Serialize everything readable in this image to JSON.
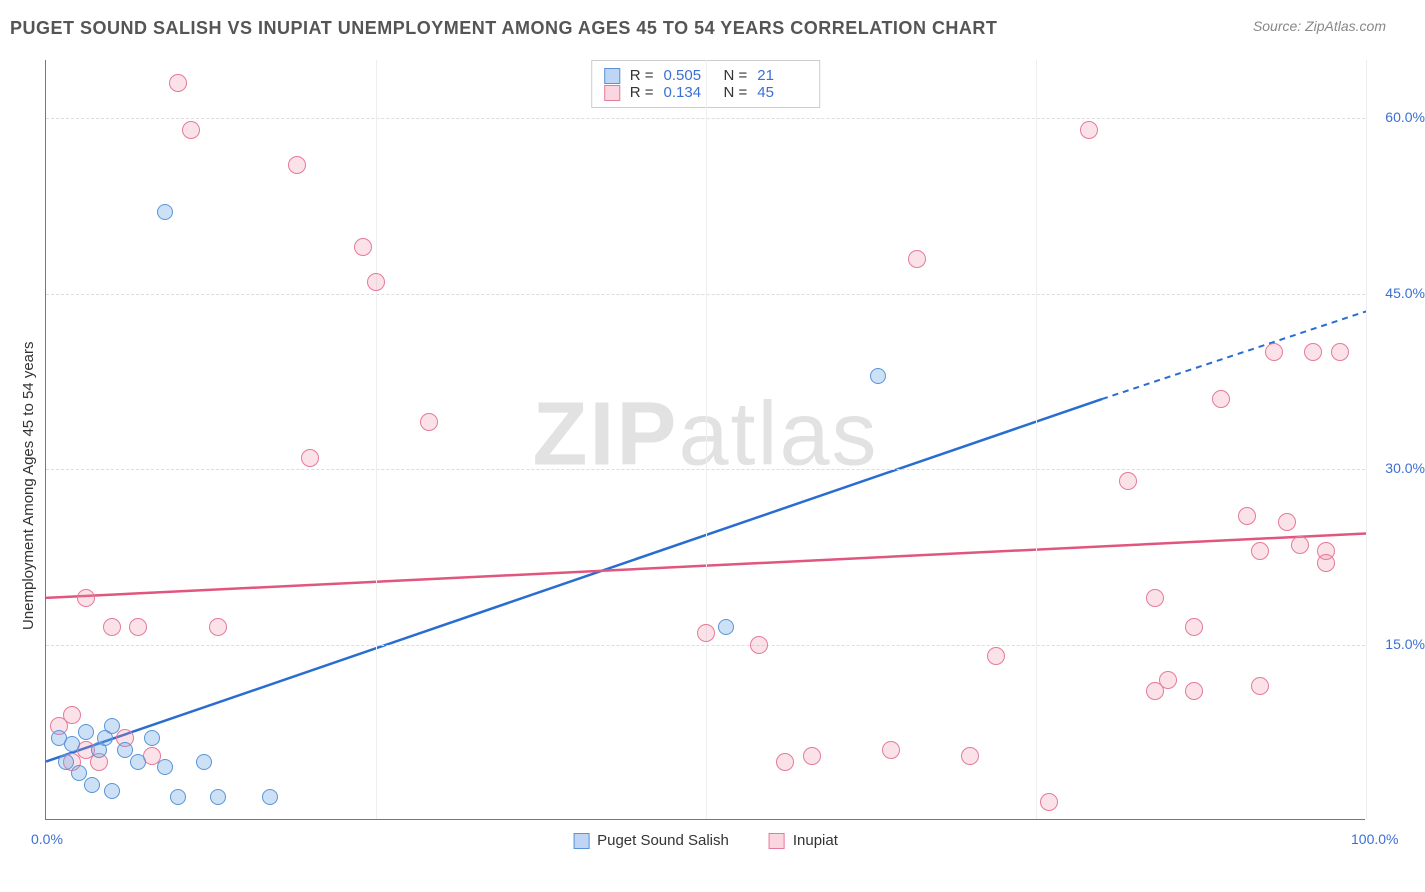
{
  "title": "PUGET SOUND SALISH VS INUPIAT UNEMPLOYMENT AMONG AGES 45 TO 54 YEARS CORRELATION CHART",
  "source": "Source: ZipAtlas.com",
  "ylabel": "Unemployment Among Ages 45 to 54 years",
  "watermark_a": "ZIP",
  "watermark_b": "atlas",
  "chart": {
    "type": "scatter",
    "xlim": [
      0,
      100
    ],
    "ylim": [
      0,
      65
    ],
    "xticks": [
      {
        "v": 0,
        "l": "0.0%"
      },
      {
        "v": 100,
        "l": "100.0%"
      }
    ],
    "yticks": [
      {
        "v": 15,
        "l": "15.0%"
      },
      {
        "v": 30,
        "l": "30.0%"
      },
      {
        "v": 45,
        "l": "45.0%"
      },
      {
        "v": 60,
        "l": "60.0%"
      }
    ],
    "vgrids": [
      25,
      50,
      75,
      100
    ],
    "background_color": "#ffffff",
    "grid_color": "#dddddd",
    "colors": {
      "blue_fill": "rgba(110,165,230,0.35)",
      "blue_stroke": "#5a94d8",
      "pink_fill": "rgba(240,140,165,0.25)",
      "pink_stroke": "#e57a9a",
      "trend_blue": "#2a6dd0",
      "trend_pink": "#e0567e",
      "tick_text": "#3b6fd4"
    },
    "series": [
      {
        "name": "Puget Sound Salish",
        "key": "blue",
        "R": "0.505",
        "N": "21",
        "trend": {
          "x1": 0,
          "y1": 5,
          "x2": 80,
          "y2": 36,
          "dash_x2": 100,
          "dash_y2": 43.5
        },
        "points": [
          {
            "x": 1,
            "y": 7
          },
          {
            "x": 1.5,
            "y": 5
          },
          {
            "x": 2,
            "y": 6.5
          },
          {
            "x": 2.5,
            "y": 4
          },
          {
            "x": 3,
            "y": 7.5
          },
          {
            "x": 3.5,
            "y": 3
          },
          {
            "x": 4,
            "y": 6
          },
          {
            "x": 4.5,
            "y": 7
          },
          {
            "x": 5,
            "y": 2.5
          },
          {
            "x": 5,
            "y": 8
          },
          {
            "x": 6,
            "y": 6
          },
          {
            "x": 7,
            "y": 5
          },
          {
            "x": 8,
            "y": 7
          },
          {
            "x": 9,
            "y": 4.5
          },
          {
            "x": 10,
            "y": 2
          },
          {
            "x": 12,
            "y": 5
          },
          {
            "x": 13,
            "y": 2
          },
          {
            "x": 17,
            "y": 2
          },
          {
            "x": 9,
            "y": 52
          },
          {
            "x": 51.5,
            "y": 16.5
          },
          {
            "x": 63,
            "y": 38
          }
        ]
      },
      {
        "name": "Inupiat",
        "key": "pink",
        "R": "0.134",
        "N": "45",
        "trend": {
          "x1": 0,
          "y1": 19,
          "x2": 100,
          "y2": 24.5
        },
        "points": [
          {
            "x": 1,
            "y": 8
          },
          {
            "x": 2,
            "y": 5
          },
          {
            "x": 2,
            "y": 9
          },
          {
            "x": 3,
            "y": 6
          },
          {
            "x": 3,
            "y": 19
          },
          {
            "x": 4,
            "y": 5
          },
          {
            "x": 5,
            "y": 16.5
          },
          {
            "x": 6,
            "y": 7
          },
          {
            "x": 7,
            "y": 16.5
          },
          {
            "x": 8,
            "y": 5.5
          },
          {
            "x": 10,
            "y": 63
          },
          {
            "x": 11,
            "y": 59
          },
          {
            "x": 13,
            "y": 16.5
          },
          {
            "x": 19,
            "y": 56
          },
          {
            "x": 20,
            "y": 31
          },
          {
            "x": 24,
            "y": 49
          },
          {
            "x": 25,
            "y": 46
          },
          {
            "x": 29,
            "y": 34
          },
          {
            "x": 50,
            "y": 16
          },
          {
            "x": 54,
            "y": 15
          },
          {
            "x": 56,
            "y": 5
          },
          {
            "x": 58,
            "y": 5.5
          },
          {
            "x": 64,
            "y": 6
          },
          {
            "x": 66,
            "y": 48
          },
          {
            "x": 70,
            "y": 5.5
          },
          {
            "x": 72,
            "y": 14
          },
          {
            "x": 76,
            "y": 1.5
          },
          {
            "x": 79,
            "y": 59
          },
          {
            "x": 82,
            "y": 29
          },
          {
            "x": 84,
            "y": 19
          },
          {
            "x": 85,
            "y": 12
          },
          {
            "x": 87,
            "y": 11
          },
          {
            "x": 87,
            "y": 16.5
          },
          {
            "x": 89,
            "y": 36
          },
          {
            "x": 91,
            "y": 26
          },
          {
            "x": 92,
            "y": 23
          },
          {
            "x": 93,
            "y": 40
          },
          {
            "x": 94,
            "y": 25.5
          },
          {
            "x": 95,
            "y": 23.5
          },
          {
            "x": 96,
            "y": 40
          },
          {
            "x": 97,
            "y": 23
          },
          {
            "x": 97,
            "y": 22
          },
          {
            "x": 98,
            "y": 40
          },
          {
            "x": 92,
            "y": 11.5
          },
          {
            "x": 84,
            "y": 11
          }
        ]
      }
    ]
  },
  "legend_bottom": [
    {
      "key": "blue",
      "label": "Puget Sound Salish"
    },
    {
      "key": "pink",
      "label": "Inupiat"
    }
  ]
}
